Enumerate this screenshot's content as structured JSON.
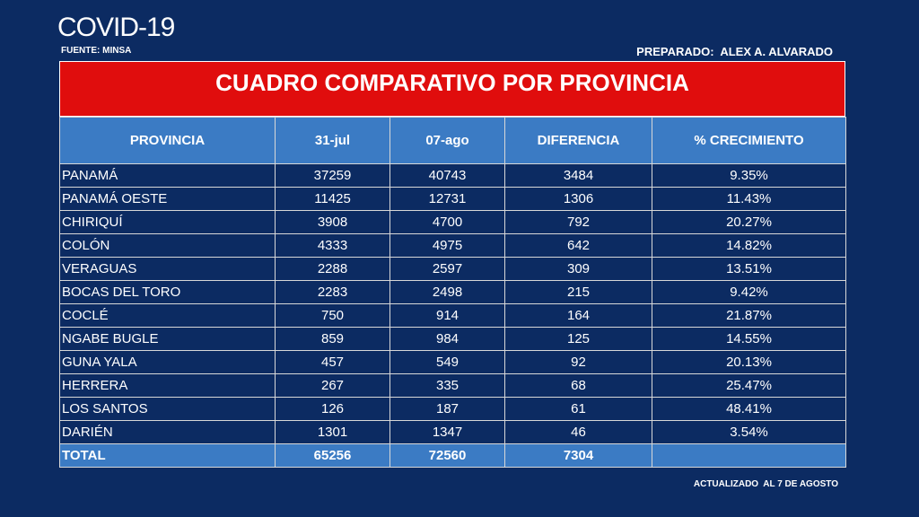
{
  "header": {
    "title": "COVID-19",
    "source": "FUENTE: MINSA",
    "prepared_by": "PREPARADO:  ALEX A. ALVARADO"
  },
  "table": {
    "title": "CUADRO COMPARATIVO POR PROVINCIA",
    "headers": [
      "PROVINCIA",
      "31-jul",
      "07-ago",
      "DIFERENCIA",
      "% CRECIMIENTO"
    ],
    "rows": [
      [
        "PANAMÁ",
        "37259",
        "40743",
        "3484",
        "9.35%"
      ],
      [
        "PANAMÁ OESTE",
        "11425",
        "12731",
        "1306",
        "11.43%"
      ],
      [
        "CHIRIQUÍ",
        "3908",
        "4700",
        "792",
        "20.27%"
      ],
      [
        "COLÓN",
        "4333",
        "4975",
        "642",
        "14.82%"
      ],
      [
        "VERAGUAS",
        "2288",
        "2597",
        "309",
        "13.51%"
      ],
      [
        "BOCAS DEL TORO",
        "2283",
        "2498",
        "215",
        "9.42%"
      ],
      [
        "COCLÉ",
        "750",
        "914",
        "164",
        "21.87%"
      ],
      [
        "NGABE BUGLE",
        "859",
        "984",
        "125",
        "14.55%"
      ],
      [
        "GUNA YALA",
        "457",
        "549",
        "92",
        "20.13%"
      ],
      [
        "HERRERA",
        "267",
        "335",
        "68",
        "25.47%"
      ],
      [
        "LOS SANTOS",
        "126",
        "187",
        "61",
        "48.41%"
      ],
      [
        "DARIÉN",
        "1301",
        "1347",
        "46",
        "3.54%"
      ]
    ],
    "total": [
      "TOTAL",
      "65256",
      "72560",
      "7304"
    ]
  },
  "footer": {
    "note": "ACTUALIZADO  AL 7 DE AGOSTO"
  }
}
